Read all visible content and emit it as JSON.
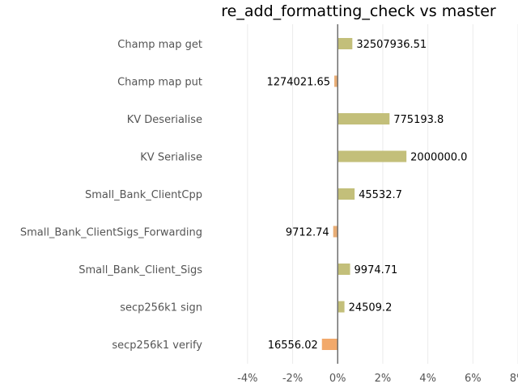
{
  "chart_data": {
    "type": "bar",
    "orientation": "horizontal",
    "title": "re_add_formatting_check vs master",
    "xlabel": "",
    "ylabel": "",
    "xlim": [
      -5,
      8
    ],
    "x_ticks": [
      -4,
      -2,
      0,
      2,
      4,
      6,
      8
    ],
    "x_tick_labels": [
      "-4%",
      "-2%",
      "0%",
      "2%",
      "4%",
      "6%",
      "8%"
    ],
    "grid": "vertical",
    "categories": [
      "Champ map get",
      "Champ map put",
      "KV Deserialise",
      "KV Serialise",
      "Small_Bank_ClientCpp",
      "Small_Bank_ClientSigs_Forwarding",
      "Small_Bank_Client_Sigs",
      "secp256k1 sign",
      "secp256k1 verify"
    ],
    "values": [
      0.65,
      -0.15,
      2.3,
      3.05,
      0.75,
      -0.2,
      0.55,
      0.3,
      -0.7
    ],
    "value_labels": [
      "32507936.51",
      "1274021.65",
      "775193.8",
      "2000000.0",
      "45532.7",
      "9712.74",
      "9974.71",
      "24509.2",
      "16556.02"
    ],
    "colors": {
      "positive": "#c3bf7a",
      "negative": "#e8ad76",
      "strong_negative": "#f2a96b",
      "zero_line": "#6e6e6e",
      "grid": "#ebebeb"
    }
  }
}
